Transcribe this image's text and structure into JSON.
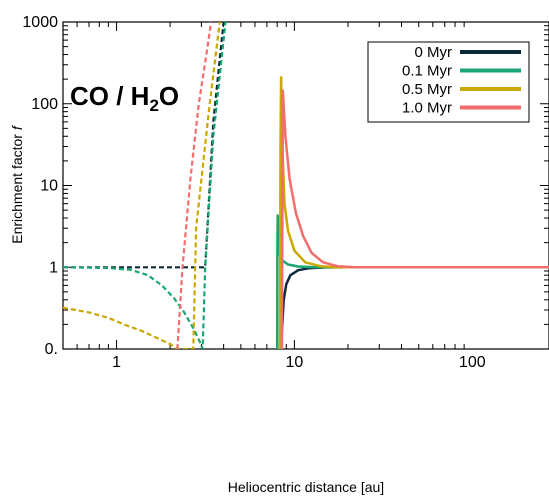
{
  "chart_data": {
    "type": "line",
    "title": "",
    "annotation": {
      "main": "CO / H",
      "sub": "2",
      "tail": "O"
    },
    "xlabel": "Heliocentric distance [au]",
    "ylabel_main": "Enrichment factor ",
    "ylabel_var": "f",
    "xscale": "log",
    "yscale": "log",
    "xlim": [
      0.5,
      270
    ],
    "ylim": [
      0.1,
      1000
    ],
    "xticks": [
      {
        "value": 1,
        "label": "1"
      },
      {
        "value": 10,
        "label": "10"
      },
      {
        "value": 100,
        "label": "100"
      }
    ],
    "yticks": [
      {
        "value": 0.1,
        "label": "0."
      },
      {
        "value": 1,
        "label": "1"
      },
      {
        "value": 10,
        "label": "10"
      },
      {
        "value": 100,
        "label": "100"
      },
      {
        "value": 1000,
        "label": "1000"
      }
    ],
    "grid": false,
    "legend_position": "top-right",
    "series": [
      {
        "name": "0 Myr",
        "color": "#0d2a3a",
        "solid": [
          [
            8.45,
            0.1
          ],
          [
            8.5,
            0.16
          ],
          [
            8.7,
            0.4
          ],
          [
            9.0,
            0.62
          ],
          [
            9.5,
            0.8
          ],
          [
            10.5,
            0.92
          ],
          [
            12,
            0.97
          ],
          [
            15,
            0.995
          ],
          [
            20,
            1.0
          ],
          [
            270,
            1.0
          ]
        ],
        "dashed": [
          [
            0.5,
            1.0
          ],
          [
            1.0,
            1.0
          ],
          [
            2.0,
            1.0
          ],
          [
            3.0,
            1.0
          ],
          [
            3.15,
            1.0
          ],
          [
            3.5,
            60
          ],
          [
            4.0,
            1000
          ]
        ]
      },
      {
        "name": "0.1 Myr",
        "color": "#1aa672",
        "solid": [
          [
            8.0,
            0.1
          ],
          [
            8.02,
            1.5
          ],
          [
            8.05,
            4.3
          ],
          [
            8.12,
            2.0
          ],
          [
            8.3,
            1.4
          ],
          [
            8.6,
            1.2
          ],
          [
            9.2,
            1.08
          ],
          [
            10.5,
            1.02
          ],
          [
            13,
            1.0
          ],
          [
            270,
            1.0
          ]
        ],
        "dashed": [
          [
            0.5,
            1.0
          ],
          [
            0.9,
            0.98
          ],
          [
            1.2,
            0.93
          ],
          [
            1.5,
            0.8
          ],
          [
            1.8,
            0.6
          ],
          [
            2.1,
            0.42
          ],
          [
            2.4,
            0.28
          ],
          [
            2.7,
            0.18
          ],
          [
            2.95,
            0.12
          ],
          [
            3.05,
            0.1
          ],
          [
            3.15,
            1.0
          ],
          [
            3.5,
            40
          ],
          [
            4.1,
            1000
          ]
        ]
      },
      {
        "name": "0.5 Myr",
        "color": "#c9a800",
        "solid": [
          [
            8.3,
            0.1
          ],
          [
            8.35,
            30
          ],
          [
            8.42,
            210
          ],
          [
            8.55,
            30
          ],
          [
            8.8,
            6
          ],
          [
            9.2,
            2.8
          ],
          [
            10,
            1.6
          ],
          [
            11.5,
            1.15
          ],
          [
            14,
            1.03
          ],
          [
            17,
            1.0
          ],
          [
            270,
            1.0
          ]
        ],
        "dashed": [
          [
            0.5,
            0.32
          ],
          [
            0.7,
            0.28
          ],
          [
            0.9,
            0.24
          ],
          [
            1.1,
            0.2
          ],
          [
            1.4,
            0.165
          ],
          [
            1.7,
            0.135
          ],
          [
            2.0,
            0.115
          ],
          [
            2.2,
            0.1
          ],
          [
            2.7,
            0.1
          ],
          [
            2.8,
            3
          ],
          [
            3.3,
            80
          ],
          [
            3.8,
            1000
          ]
        ]
      },
      {
        "name": "1.0 Myr",
        "color": "#f26d6d",
        "solid": [
          [
            8.5,
            0.1
          ],
          [
            8.6,
            145
          ],
          [
            8.9,
            40
          ],
          [
            9.4,
            12
          ],
          [
            10.2,
            4.6
          ],
          [
            11.2,
            2.4
          ],
          [
            12.5,
            1.5
          ],
          [
            14.5,
            1.15
          ],
          [
            17.5,
            1.03
          ],
          [
            22,
            1.0
          ],
          [
            270,
            1.0
          ]
        ],
        "dashed": [
          [
            2.2,
            0.1
          ],
          [
            2.35,
            1
          ],
          [
            2.6,
            12
          ],
          [
            2.9,
            100
          ],
          [
            3.2,
            400
          ],
          [
            3.4,
            1000
          ]
        ]
      }
    ]
  }
}
